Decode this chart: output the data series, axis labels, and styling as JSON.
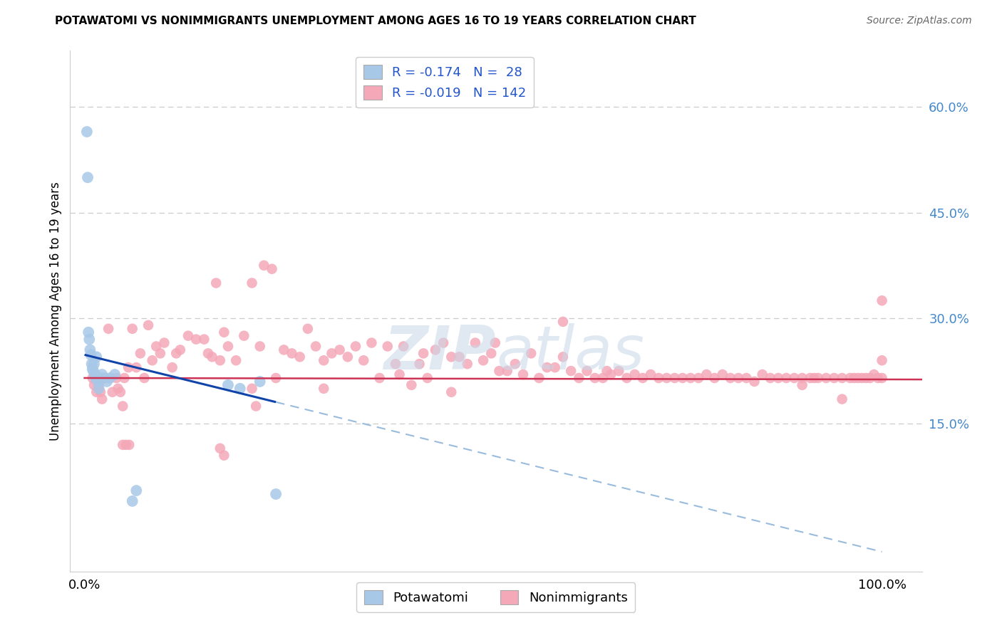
{
  "title": "POTAWATOMI VS NONIMMIGRANTS UNEMPLOYMENT AMONG AGES 16 TO 19 YEARS CORRELATION CHART",
  "source": "Source: ZipAtlas.com",
  "ylabel": "Unemployment Among Ages 16 to 19 years",
  "potawatomi_color": "#a8c8e8",
  "nonimmigrant_color": "#f4a8b8",
  "trend_blue": "#1144aa",
  "trend_pink": "#cc3355",
  "trend_blue_dash": "#99bbdd",
  "ytick_labels": [
    "15.0%",
    "30.0%",
    "45.0%",
    "60.0%"
  ],
  "ytick_vals": [
    0.15,
    0.3,
    0.45,
    0.6
  ],
  "xlim": [
    -0.018,
    1.05
  ],
  "ylim": [
    -0.06,
    0.68
  ],
  "blue_intercept": 0.248,
  "blue_slope": -0.28,
  "pink_intercept": 0.215,
  "pink_slope": -0.002,
  "potawatomi_x": [
    0.003,
    0.004,
    0.005,
    0.006,
    0.007,
    0.008,
    0.009,
    0.01,
    0.011,
    0.012,
    0.013,
    0.014,
    0.015,
    0.016,
    0.017,
    0.018,
    0.02,
    0.022,
    0.025,
    0.028,
    0.032,
    0.038,
    0.06,
    0.065,
    0.18,
    0.195,
    0.22,
    0.24
  ],
  "potawatomi_y": [
    0.565,
    0.5,
    0.28,
    0.27,
    0.255,
    0.248,
    0.235,
    0.228,
    0.225,
    0.235,
    0.22,
    0.215,
    0.245,
    0.215,
    0.21,
    0.2,
    0.215,
    0.22,
    0.215,
    0.21,
    0.215,
    0.22,
    0.04,
    0.055,
    0.205,
    0.2,
    0.21,
    0.05
  ],
  "nonimmigrant_x": [
    0.01,
    0.012,
    0.015,
    0.018,
    0.02,
    0.022,
    0.025,
    0.03,
    0.035,
    0.04,
    0.042,
    0.045,
    0.048,
    0.05,
    0.055,
    0.06,
    0.065,
    0.07,
    0.075,
    0.08,
    0.085,
    0.09,
    0.095,
    0.1,
    0.11,
    0.115,
    0.12,
    0.13,
    0.14,
    0.15,
    0.155,
    0.16,
    0.165,
    0.17,
    0.175,
    0.18,
    0.19,
    0.2,
    0.21,
    0.22,
    0.225,
    0.235,
    0.24,
    0.25,
    0.26,
    0.27,
    0.28,
    0.29,
    0.3,
    0.31,
    0.32,
    0.33,
    0.34,
    0.35,
    0.36,
    0.37,
    0.38,
    0.39,
    0.395,
    0.4,
    0.41,
    0.42,
    0.425,
    0.43,
    0.44,
    0.45,
    0.46,
    0.47,
    0.48,
    0.49,
    0.5,
    0.51,
    0.515,
    0.52,
    0.53,
    0.54,
    0.55,
    0.56,
    0.57,
    0.58,
    0.59,
    0.6,
    0.61,
    0.62,
    0.63,
    0.64,
    0.65,
    0.655,
    0.66,
    0.67,
    0.68,
    0.69,
    0.7,
    0.71,
    0.72,
    0.73,
    0.74,
    0.75,
    0.76,
    0.77,
    0.78,
    0.79,
    0.8,
    0.81,
    0.82,
    0.83,
    0.84,
    0.85,
    0.86,
    0.87,
    0.88,
    0.89,
    0.9,
    0.91,
    0.915,
    0.92,
    0.93,
    0.94,
    0.95,
    0.96,
    0.965,
    0.97,
    0.975,
    0.98,
    0.985,
    0.99,
    0.995,
    1.0,
    1.0,
    1.0,
    0.048,
    0.052,
    0.056,
    0.21,
    0.215,
    0.17,
    0.175,
    0.3,
    0.46,
    0.6,
    0.9,
    0.95
  ],
  "nonimmigrant_y": [
    0.215,
    0.205,
    0.195,
    0.205,
    0.195,
    0.185,
    0.215,
    0.285,
    0.195,
    0.215,
    0.2,
    0.195,
    0.175,
    0.215,
    0.23,
    0.285,
    0.23,
    0.25,
    0.215,
    0.29,
    0.24,
    0.26,
    0.25,
    0.265,
    0.23,
    0.25,
    0.255,
    0.275,
    0.27,
    0.27,
    0.25,
    0.245,
    0.35,
    0.24,
    0.28,
    0.26,
    0.24,
    0.275,
    0.35,
    0.26,
    0.375,
    0.37,
    0.215,
    0.255,
    0.25,
    0.245,
    0.285,
    0.26,
    0.24,
    0.25,
    0.255,
    0.245,
    0.26,
    0.24,
    0.265,
    0.215,
    0.26,
    0.235,
    0.22,
    0.26,
    0.205,
    0.235,
    0.25,
    0.215,
    0.255,
    0.265,
    0.245,
    0.245,
    0.235,
    0.265,
    0.24,
    0.25,
    0.265,
    0.225,
    0.225,
    0.235,
    0.22,
    0.25,
    0.215,
    0.23,
    0.23,
    0.245,
    0.225,
    0.215,
    0.225,
    0.215,
    0.215,
    0.225,
    0.22,
    0.225,
    0.215,
    0.22,
    0.215,
    0.22,
    0.215,
    0.215,
    0.215,
    0.215,
    0.215,
    0.215,
    0.22,
    0.215,
    0.22,
    0.215,
    0.215,
    0.215,
    0.21,
    0.22,
    0.215,
    0.215,
    0.215,
    0.215,
    0.215,
    0.215,
    0.215,
    0.215,
    0.215,
    0.215,
    0.215,
    0.215,
    0.215,
    0.215,
    0.215,
    0.215,
    0.215,
    0.22,
    0.215,
    0.215,
    0.24,
    0.325,
    0.12,
    0.12,
    0.12,
    0.2,
    0.175,
    0.115,
    0.105,
    0.2,
    0.195,
    0.295,
    0.205,
    0.185
  ]
}
